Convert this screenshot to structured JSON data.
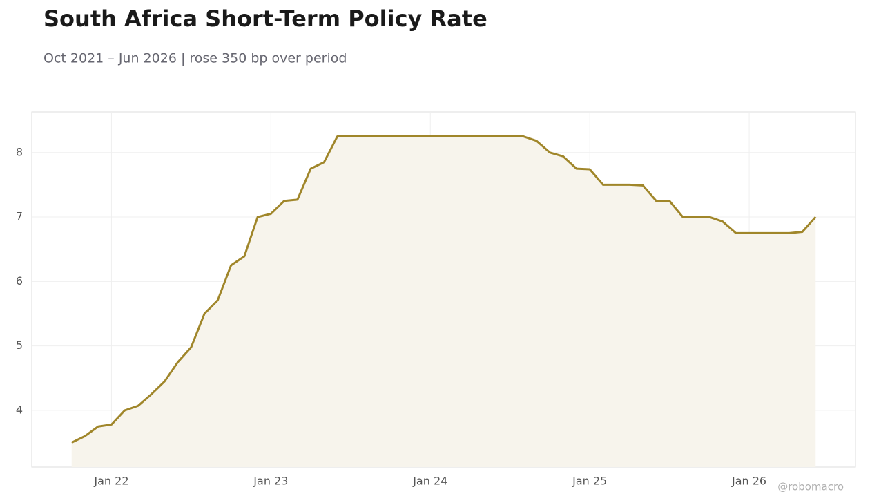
{
  "chart_data": {
    "type": "line",
    "title": "South Africa Short-Term Policy Rate",
    "subtitle": "Oct 2021 – Jun 2026 | rose 350 bp over period",
    "watermark": "@robomacro",
    "x": [
      "2021-10",
      "2021-11",
      "2021-12",
      "2022-01",
      "2022-02",
      "2022-03",
      "2022-04",
      "2022-05",
      "2022-06",
      "2022-07",
      "2022-08",
      "2022-09",
      "2022-10",
      "2022-11",
      "2022-12",
      "2023-01",
      "2023-02",
      "2023-03",
      "2023-04",
      "2023-05",
      "2023-06",
      "2023-07",
      "2023-08",
      "2023-09",
      "2023-10",
      "2023-11",
      "2023-12",
      "2024-01",
      "2024-02",
      "2024-03",
      "2024-04",
      "2024-05",
      "2024-06",
      "2024-07",
      "2024-08",
      "2024-09",
      "2024-10",
      "2024-11",
      "2024-12",
      "2025-01",
      "2025-02",
      "2025-03",
      "2025-04",
      "2025-05",
      "2025-06",
      "2025-07",
      "2025-08",
      "2025-09",
      "2025-10",
      "2025-11",
      "2025-12",
      "2026-01",
      "2026-02",
      "2026-03",
      "2026-04",
      "2026-05",
      "2026-06"
    ],
    "series": [
      {
        "name": "Policy Rate",
        "color": "#a0862a",
        "fill": "#f7f4ec",
        "values": [
          3.5,
          3.6,
          3.75,
          3.78,
          4.0,
          4.07,
          4.25,
          4.45,
          4.75,
          4.98,
          5.5,
          5.71,
          6.25,
          6.39,
          7.0,
          7.05,
          7.25,
          7.27,
          7.75,
          7.85,
          8.25,
          8.25,
          8.25,
          8.25,
          8.25,
          8.25,
          8.25,
          8.25,
          8.25,
          8.25,
          8.25,
          8.25,
          8.25,
          8.25,
          8.25,
          8.18,
          8.0,
          7.94,
          7.75,
          7.74,
          7.5,
          7.5,
          7.5,
          7.49,
          7.25,
          7.25,
          7.0,
          7.0,
          7.0,
          6.93,
          6.75,
          6.75,
          6.75,
          6.75,
          6.75,
          6.77,
          7.0
        ]
      }
    ],
    "xlim": [
      "2021-07",
      "2026-09"
    ],
    "xticks": [
      {
        "value": "2022-01",
        "label": "Jan 22"
      },
      {
        "value": "2023-01",
        "label": "Jan 23"
      },
      {
        "value": "2024-01",
        "label": "Jan 24"
      },
      {
        "value": "2025-01",
        "label": "Jan 25"
      },
      {
        "value": "2026-01",
        "label": "Jan 26"
      }
    ],
    "ylim": [
      3.12,
      8.63
    ],
    "yticks": [
      4,
      5,
      6,
      7,
      8
    ],
    "grid": true
  }
}
